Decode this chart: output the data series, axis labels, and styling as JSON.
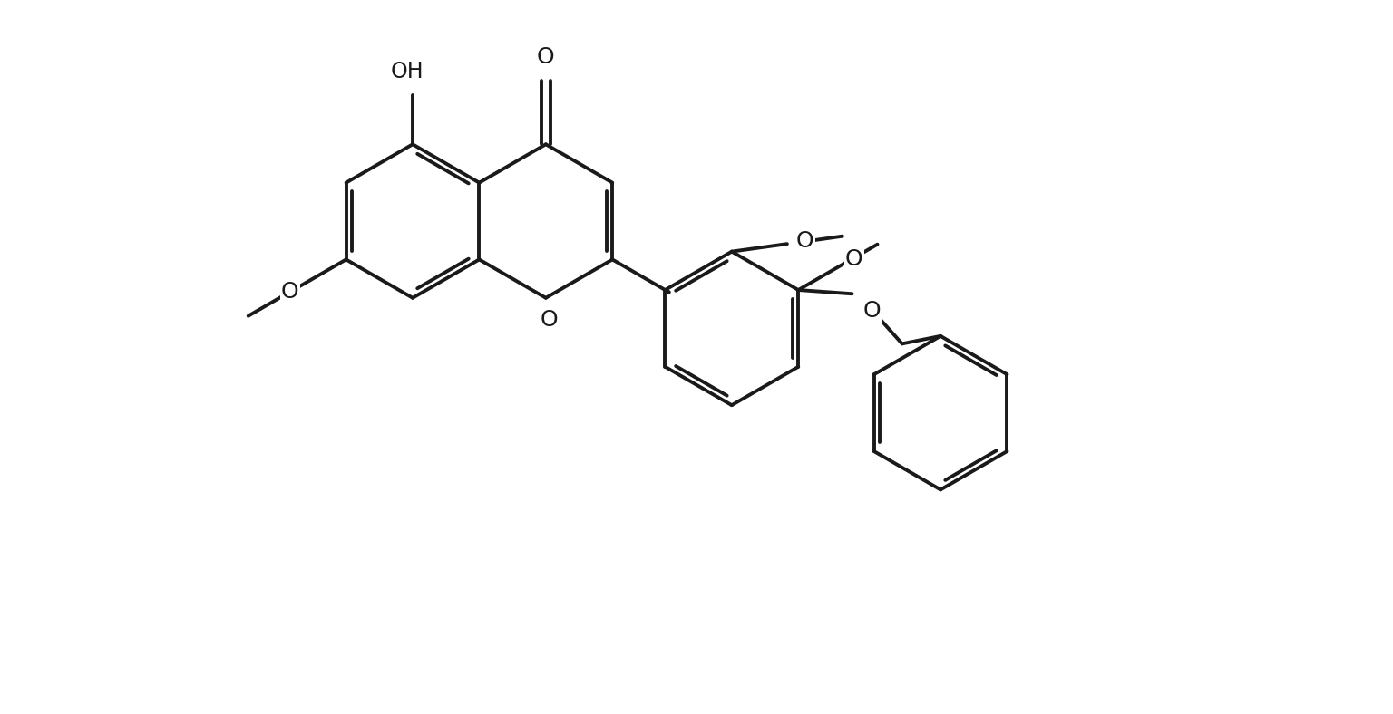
{
  "bg_color": "#ffffff",
  "line_color": "#1a1a1a",
  "line_width": 2.8,
  "font_size": 16,
  "figsize": [
    15.36,
    7.88
  ],
  "dpi": 100,
  "xlim": [
    -1.5,
    17.5
  ],
  "ylim": [
    -4.5,
    7.5
  ]
}
